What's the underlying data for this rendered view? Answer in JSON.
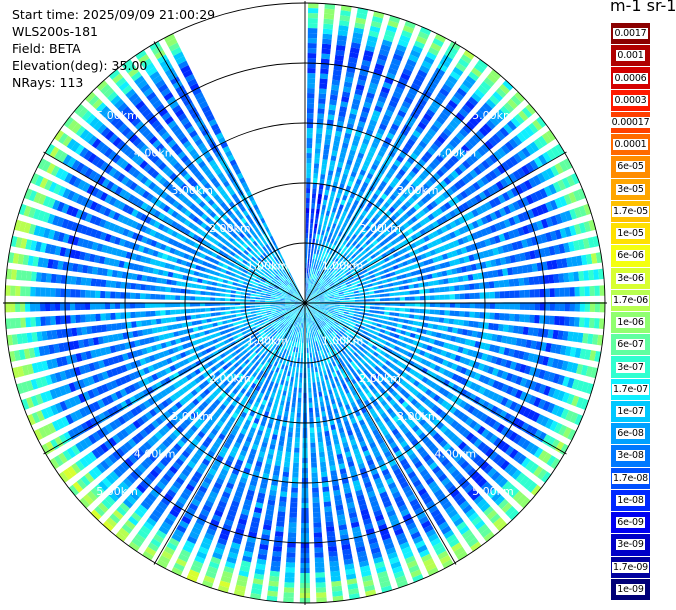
{
  "info": {
    "start_time": "Start time: 2025/09/09 21:00:29",
    "instrument": "WLS200s-181",
    "field": "Field: BETA",
    "elevation": "Elevation(deg): 35.00",
    "nrays": "NRays: 113"
  },
  "colorbar": {
    "title": "m-1 sr-1",
    "labels": [
      "0.0017",
      "0.001",
      "0.0006",
      "0.0003",
      "0.00017",
      "0.0001",
      "6e-05",
      "3e-05",
      "1.7e-05",
      "1e-05",
      "6e-06",
      "3e-06",
      "1.7e-06",
      "1e-06",
      "6e-07",
      "3e-07",
      "1.7e-07",
      "1e-07",
      "6e-08",
      "3e-08",
      "1.7e-08",
      "1e-08",
      "6e-09",
      "3e-09",
      "1.7e-09",
      "1e-09"
    ],
    "colors": [
      "#8b0000",
      "#b00000",
      "#d40000",
      "#ff1a00",
      "#ff4000",
      "#ff6a00",
      "#ff8c00",
      "#ffa600",
      "#ffc000",
      "#ffe000",
      "#f4ff10",
      "#d8ff30",
      "#b8ff50",
      "#90ff70",
      "#60ffa0",
      "#30ffd0",
      "#10f0ff",
      "#00c8ff",
      "#00a0ff",
      "#0078ff",
      "#0050ff",
      "#0028ff",
      "#0000f0",
      "#0000c8",
      "#0000a0",
      "#000078"
    ]
  },
  "chart_data": {
    "type": "heatmap",
    "projection": "polar PPI",
    "variable": "BETA",
    "range_ring_labels": [
      "1.00km",
      "2.00km",
      "3.00km",
      "4.00km",
      "5.00km"
    ],
    "range_rings_km": [
      1,
      2,
      3,
      4,
      5
    ],
    "max_range_km": 5.0,
    "nrays": 113,
    "no_data_azimuth_deg": [
      335,
      360
    ],
    "radial_profile": [
      {
        "range_km": 0.5,
        "value": "1e-07"
      },
      {
        "range_km": 1.5,
        "value": "6e-08"
      },
      {
        "range_km": 2.5,
        "value": "6e-08"
      },
      {
        "range_km": 3.5,
        "value": "3e-08"
      },
      {
        "range_km": 4.3,
        "value": "1.7e-08"
      },
      {
        "range_km": 4.8,
        "value": "6e-07"
      }
    ]
  }
}
